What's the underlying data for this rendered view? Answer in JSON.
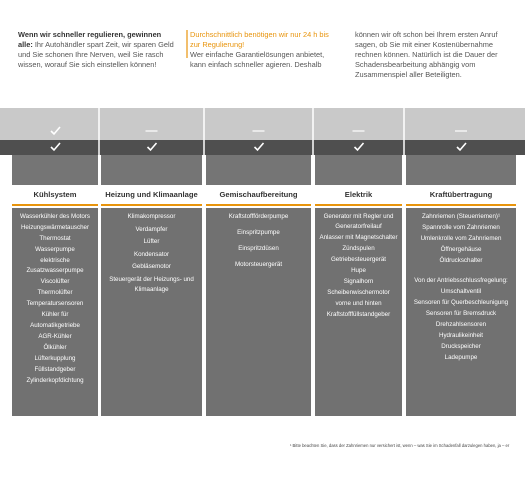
{
  "intro": [
    {
      "lead": "Wenn wir schneller regulieren, gewinnen alle:",
      "text": "Ihr Autohändler spart Zeit, wir sparen Geld und Sie schonen Ihre Nerven, weil Sie rasch wissen, worauf Sie sich einstellen können!"
    },
    {
      "lead": "Durchschnittlich benötigen wir nur 24 h bis zur Regulierung!",
      "text": "Wer einfache Garantielösungen anbietet, kann einfach schneller agieren. Deshalb"
    },
    {
      "text": "können wir oft schon bei Ihrem ersten Anruf sagen, ob Sie mit einer Kostenübernahme rechnen können. Natürlich ist die Dauer der Schadensbearbeitung abhängig vom Zusammenspiel aller Beteiligten."
    }
  ],
  "categories": [
    {
      "title": "Kühlsystem",
      "items": [
        "Wasserkühler des Motors",
        "Heizungswärmetauscher",
        "Thermostat",
        "Wasserpumpe",
        "elektrische Zusatzwasserpumpe",
        "Viscolüfter",
        "Thermolüfter",
        "Temperatursensoren",
        "Kühler für Automatikgetriebe",
        "AGR-Kühler",
        "Ölkühler",
        "Lüfterkupplung",
        "Füllstandgeber",
        "Zylinderkopfdichtung"
      ]
    },
    {
      "title": "Heizung und Klimaanlage",
      "items": [
        "Klimakompressor",
        "Verdampfer",
        "Lüfter",
        "Kondensator",
        "Gebläsemotor",
        "Steuergerät der Heizungs- und Klimaanlage"
      ]
    },
    {
      "title": "Gemischaufbereitung",
      "items": [
        "Kraftstoffförderpumpe",
        "Einspritzpumpe",
        "Einspritzdüsen",
        "Motorsteuergerät"
      ]
    },
    {
      "title": "Elektrik",
      "items": [
        "Generator mit Regler und Generatorfreilauf",
        "Anlasser mit Magnetschalter",
        "Zündspulen",
        "Getriebesteuergerät",
        "Hupe",
        "Signalhorn",
        "Scheibenwischermotor vorne und hinten",
        "Kraftstofffüllstandgeber"
      ]
    },
    {
      "title": "Kraftübertragung",
      "items": [
        "Zahnriemen (Steuerriemen)¹",
        "Spannrolle vom Zahnriemen",
        "Umlenkrolle vom Zahnriemen",
        "Öffnergehäuse",
        "Öldruckschalter"
      ],
      "sub_title": "Von der Antriebsschlussfregelung:",
      "sub_items": [
        "Umschaltventil",
        "Sensoren für Querbeschleunigung",
        "Sensoren für Bremsdruck",
        "Drehzahlsensoren",
        "Hydraulikeinheit",
        "Druckspeicher",
        "Ladepumpe"
      ]
    }
  ],
  "footnote": "¹ Bitte beachten Sie, dass der Zahnriemen nur versichert ist, wenn – was Sie im Schadenfall darzulegen haben, ja – er"
}
